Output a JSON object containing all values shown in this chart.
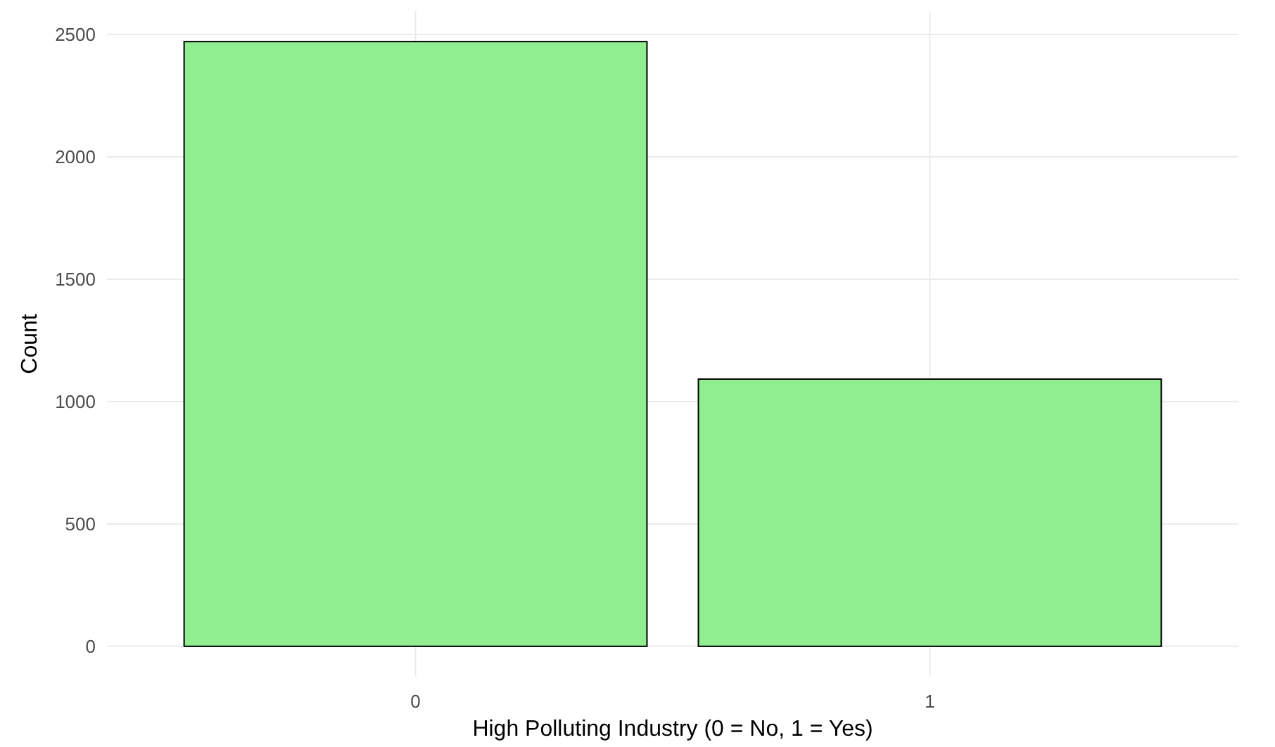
{
  "chart_data": {
    "type": "bar",
    "xlabel": "High Polluting Industry (0 = No, 1 = Yes)",
    "ylabel": "Count",
    "categories": [
      "0",
      "1"
    ],
    "values": [
      2471,
      1092
    ],
    "color": "#90ee90",
    "ylim": [
      -124,
      2595
    ],
    "yticks": [
      0,
      500,
      1000,
      1500,
      2000,
      2500
    ],
    "grid": true
  }
}
